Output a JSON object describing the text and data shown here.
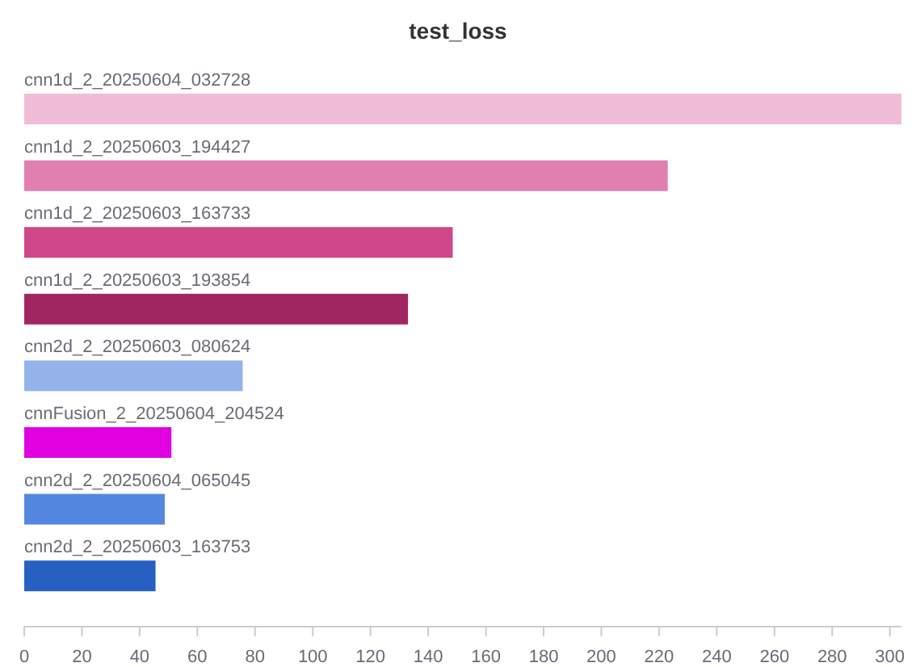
{
  "chart_data": {
    "type": "bar",
    "orientation": "horizontal",
    "title": "test_loss",
    "categories": [
      "cnn1d_2_20250604_032728",
      "cnn1d_2_20250603_194427",
      "cnn1d_2_20250603_163733",
      "cnn1d_2_20250603_193854",
      "cnn2d_2_20250603_080624",
      "cnnFusion_2_20250604_204524",
      "cnn2d_2_20250604_065045",
      "cnn2d_2_20250603_163753"
    ],
    "values": [
      304,
      223,
      148.5,
      133,
      75.7,
      51,
      48.7,
      45.5
    ],
    "colors": [
      "#f0bcd8",
      "#e07fb0",
      "#d0478a",
      "#a02662",
      "#93b3ea",
      "#e000e0",
      "#5488e0",
      "#2660c0"
    ],
    "xlim": [
      0,
      304
    ],
    "xticks": [
      0,
      20,
      40,
      60,
      80,
      100,
      120,
      140,
      160,
      180,
      200,
      220,
      240,
      260,
      280,
      300
    ],
    "grid": false
  }
}
